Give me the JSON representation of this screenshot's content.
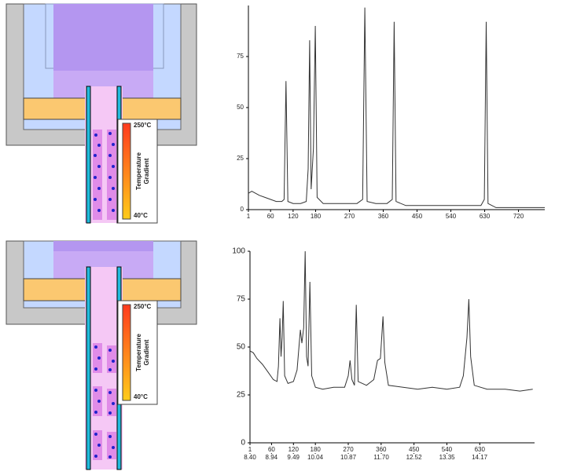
{
  "diagrams": [
    {
      "gradient_top": "250°C",
      "gradient_label": [
        "Temperature",
        "Gradient"
      ],
      "gradient_bottom": "40°C"
    },
    {
      "gradient_top": "250°C",
      "gradient_label": [
        "Temperature",
        "Gradient"
      ],
      "gradient_bottom": "40°C"
    }
  ],
  "chart_data": [
    {
      "type": "line",
      "color": "#333333",
      "x": [
        1,
        10,
        20,
        30,
        45,
        60,
        75,
        90,
        96,
        101,
        106,
        120,
        140,
        155,
        160,
        164,
        168,
        174,
        179,
        184,
        200,
        230,
        260,
        290,
        305,
        311,
        317,
        340,
        370,
        384,
        389,
        394,
        420,
        460,
        500,
        540,
        580,
        620,
        629,
        634,
        639,
        660,
        700,
        740,
        790
      ],
      "values": [
        8,
        9,
        8,
        7,
        6,
        5,
        4,
        4,
        5,
        63,
        4,
        3,
        3,
        4,
        20,
        83,
        10,
        30,
        90,
        6,
        3,
        3,
        3,
        3,
        5,
        99,
        4,
        3,
        3,
        5,
        92,
        4,
        2,
        2,
        2,
        2,
        2,
        2,
        5,
        92,
        3,
        1,
        1,
        1,
        1
      ],
      "xlim": [
        1,
        790
      ],
      "xticks": [
        1,
        60,
        120,
        180,
        270,
        360,
        450,
        540,
        630,
        720
      ],
      "ylim": [
        0,
        100
      ],
      "yticks": [
        0,
        25,
        50,
        75
      ],
      "grid": false
    },
    {
      "type": "line",
      "color": "#333333",
      "x": [
        1,
        10,
        20,
        35,
        50,
        65,
        75,
        79,
        83,
        86,
        89,
        92,
        96,
        105,
        120,
        130,
        136,
        139,
        143,
        148,
        152,
        156,
        160,
        165,
        170,
        180,
        200,
        230,
        260,
        270,
        275,
        280,
        287,
        292,
        297,
        320,
        340,
        350,
        358,
        365,
        370,
        380,
        420,
        460,
        500,
        540,
        575,
        585,
        595,
        600,
        605,
        615,
        650,
        700,
        740,
        775
      ],
      "values": [
        48,
        47,
        44,
        41,
        37,
        33,
        32,
        40,
        65,
        45,
        55,
        74,
        35,
        31,
        32,
        38,
        52,
        59,
        52,
        60,
        100,
        45,
        40,
        84,
        35,
        29,
        28,
        29,
        29,
        35,
        43,
        33,
        30,
        72,
        32,
        30,
        33,
        43,
        44,
        66,
        42,
        30,
        29,
        28,
        29,
        28,
        29,
        35,
        55,
        75,
        45,
        30,
        28,
        28,
        27,
        28
      ],
      "xlim": [
        1,
        780
      ],
      "xticks": [
        1,
        60,
        120,
        180,
        270,
        360,
        450,
        540,
        630
      ],
      "x2lim": [
        8.4,
        15.55
      ],
      "x2ticks": [
        {
          "value": 8.4,
          "label": "8.40"
        },
        {
          "value": 8.94,
          "label": "8.94"
        },
        {
          "value": 9.49,
          "label": "9.49"
        },
        {
          "value": 10.04,
          "label": "10.04"
        },
        {
          "value": 10.87,
          "label": "10.87"
        },
        {
          "value": 11.7,
          "label": "11.70"
        },
        {
          "value": 12.52,
          "label": "12.52"
        },
        {
          "value": 13.35,
          "label": "13.35"
        },
        {
          "value": 14.17,
          "label": "14.17"
        }
      ],
      "ylim": [
        0,
        100
      ],
      "yticks": [
        0,
        25,
        50,
        75,
        100
      ],
      "grid": false
    }
  ]
}
